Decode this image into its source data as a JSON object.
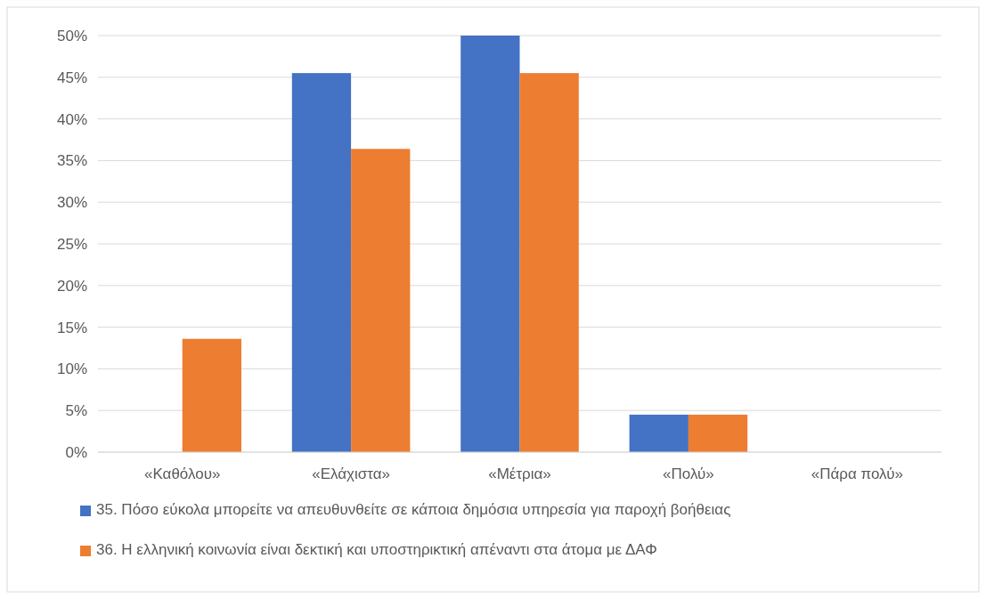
{
  "chart_data": {
    "type": "bar",
    "categories": [
      "«Καθόλου»",
      "«Ελάχιστα»",
      "«Μέτρια»",
      "«Πολύ»",
      "«Πάρα πολύ»"
    ],
    "series": [
      {
        "name": "35. Πόσο εύκολα μπορείτε να απευθυνθείτε σε κάποια δημόσια υπηρεσία για παροχή βοήθειας",
        "color": "#4472c4",
        "values": [
          0,
          45.5,
          50,
          4.5,
          0
        ]
      },
      {
        "name": "36. Η ελληνική κοινωνία είναι δεκτική και υποστηρικτική απέναντι στα άτομα με ΔΑΦ",
        "color": "#ed7d31",
        "values": [
          13.6,
          36.4,
          45.5,
          4.5,
          0
        ]
      }
    ],
    "ylim": [
      0,
      50
    ],
    "yticks": [
      {
        "value": 0,
        "label": "0%"
      },
      {
        "value": 5,
        "label": "5%"
      },
      {
        "value": 10,
        "label": "10%"
      },
      {
        "value": 15,
        "label": "15%"
      },
      {
        "value": 20,
        "label": "20%"
      },
      {
        "value": 25,
        "label": "25%"
      },
      {
        "value": 30,
        "label": "30%"
      },
      {
        "value": 35,
        "label": "35%"
      },
      {
        "value": 40,
        "label": "40%"
      },
      {
        "value": 45,
        "label": "45%"
      },
      {
        "value": 50,
        "label": "50%"
      }
    ],
    "grid": "y",
    "legend": "bottom"
  }
}
